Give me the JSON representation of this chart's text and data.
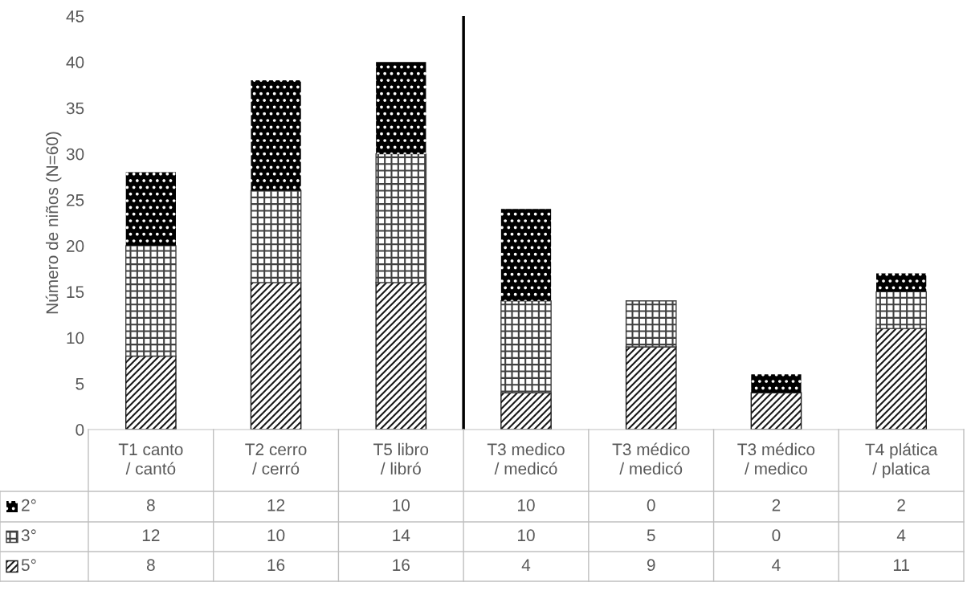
{
  "chart_data": {
    "type": "bar",
    "stacked": true,
    "ylabel": "Número de niños (N=60)",
    "categories": [
      "T1 canto / cantó",
      "T2 cerro / cerró",
      "T5 libro / libró",
      "T3 medico / medicó",
      "T3 médico / medicó",
      "T3 médico / medico",
      "T4 plática / platica"
    ],
    "series": [
      {
        "name": "5°",
        "color": "#1a1a1a",
        "values": [
          8,
          16,
          16,
          4,
          9,
          4,
          11
        ]
      },
      {
        "name": "3°",
        "color": "#404040",
        "values": [
          12,
          10,
          14,
          10,
          5,
          0,
          4
        ]
      },
      {
        "name": "2°",
        "color": "#000000",
        "values": [
          8,
          12,
          10,
          10,
          0,
          2,
          2
        ]
      }
    ],
    "ylim": [
      0,
      45
    ],
    "yticks": [
      0,
      5,
      10,
      15,
      20,
      25,
      30,
      35,
      40,
      45
    ],
    "data_labels": true,
    "legend": "bottom",
    "grid": false
  }
}
